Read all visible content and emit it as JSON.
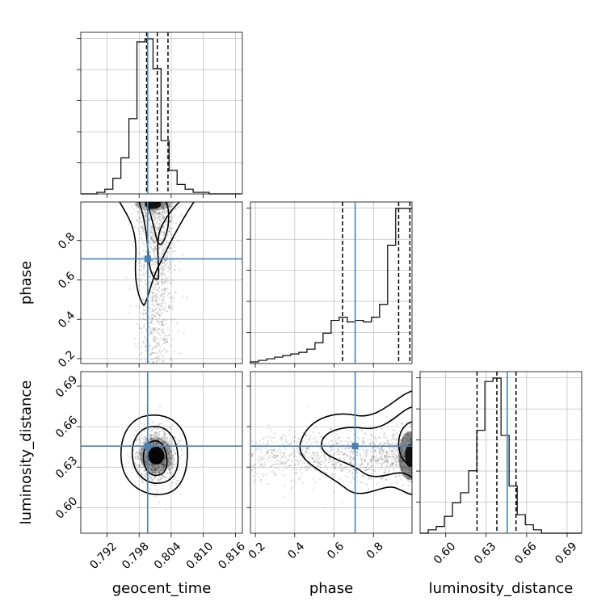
{
  "chart_data": {
    "type": "corner",
    "parameters": [
      "geocent_time",
      "phase",
      "luminosity_distance"
    ],
    "truths": {
      "geocent_time": 0.7996,
      "phase": 0.707,
      "luminosity_distance": 0.6456
    },
    "quantiles": {
      "geocent_time": [
        0.7994,
        0.8014,
        0.8034
      ],
      "phase": [
        0.643,
        0.928,
        0.985
      ],
      "luminosity_distance": [
        0.6232,
        0.6379,
        0.6521
      ]
    },
    "ranges": {
      "geocent_time": [
        0.7871,
        0.8173
      ],
      "phase": [
        0.175,
        0.996
      ],
      "luminosity_distance": [
        0.581,
        0.7008
      ]
    },
    "ticks": {
      "geocent_time": {
        "values": [
          0.792,
          0.798,
          0.804,
          0.81,
          0.816
        ],
        "labels": [
          "0.792",
          "0.798",
          "0.804",
          "0.810",
          "0.816"
        ]
      },
      "phase": {
        "values": [
          0.2,
          0.4,
          0.6,
          0.8
        ],
        "labels": [
          "0.2",
          "0.4",
          "0.6",
          "0.8"
        ]
      },
      "luminosity_distance": {
        "values": [
          0.6,
          0.63,
          0.66,
          0.69
        ],
        "labels": [
          "0.60",
          "0.63",
          "0.66",
          "0.69"
        ]
      }
    },
    "histograms": {
      "geocent_time": {
        "edges_start": 0.7871,
        "bin_width": 0.0015,
        "counts": [
          0,
          0,
          1,
          3,
          10,
          23,
          48,
          97,
          99,
          80,
          34,
          15,
          6,
          3,
          1,
          1,
          0,
          0,
          0,
          0
        ]
      },
      "phase": {
        "edges_start": 0.175,
        "bin_width": 0.041,
        "counts": [
          1,
          2,
          3,
          4,
          5,
          6,
          7,
          9,
          13,
          19,
          27,
          29,
          26,
          27,
          26,
          29,
          37,
          74,
          97,
          97
        ]
      },
      "luminosity_distance": {
        "edges_start": 0.581,
        "bin_width": 0.006,
        "counts": [
          0,
          2,
          4,
          10,
          18,
          24,
          37,
          61,
          90,
          92,
          58,
          28,
          11,
          5,
          2,
          0,
          0,
          0,
          0,
          0
        ]
      }
    },
    "axes_labels": {
      "x": [
        "geocent_time",
        "phase",
        "luminosity_distance"
      ],
      "y": [
        "phase",
        "luminosity_distance"
      ]
    },
    "grid": true,
    "colors": {
      "truth": "#4682b4",
      "contour": "#000000",
      "samples": "#000000"
    }
  }
}
